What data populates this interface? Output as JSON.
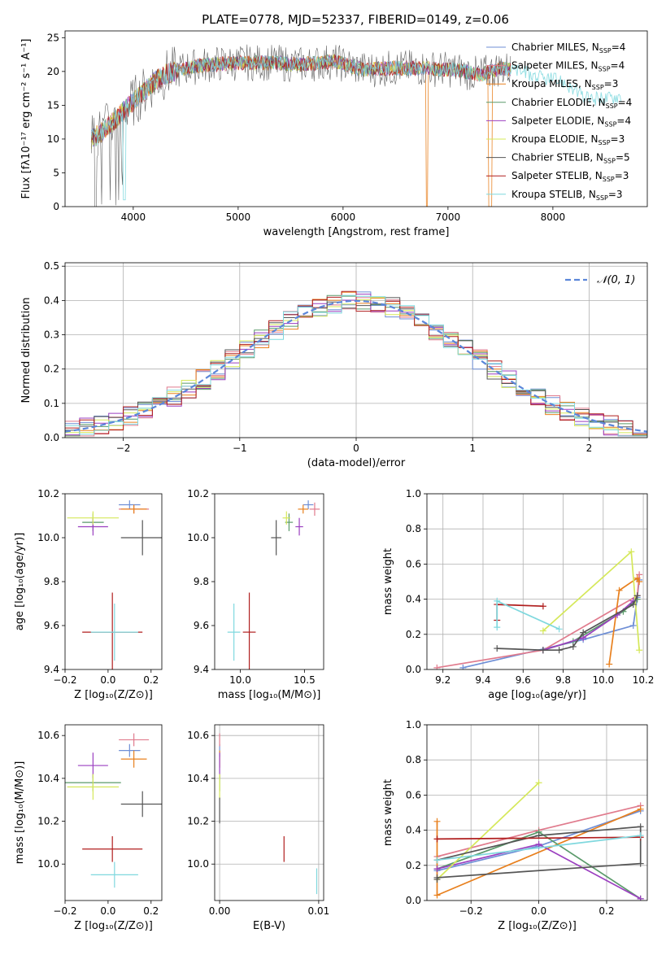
{
  "figure": {
    "title": "PLATE=0778, MJD=52337, FIBERID=0149, z=0.06"
  },
  "series_styles": [
    {
      "name": "Chabrier MILES, N",
      "sub": "SSP",
      "suffix": "=4",
      "color": "#6f8fd6"
    },
    {
      "name": "Salpeter MILES, N",
      "sub": "SSP",
      "suffix": "=4",
      "color": "#e07b8d"
    },
    {
      "name": "Kroupa MILES, N",
      "sub": "SSP",
      "suffix": "=3",
      "color": "#e8801e"
    },
    {
      "name": "Chabrier ELODIE, N",
      "sub": "SSP",
      "suffix": "=4",
      "color": "#5a9a6a"
    },
    {
      "name": "Salpeter ELODIE, N",
      "sub": "SSP",
      "suffix": "=4",
      "color": "#9b3fc0"
    },
    {
      "name": "Kroupa ELODIE, N",
      "sub": "SSP",
      "suffix": "=3",
      "color": "#d5e85a"
    },
    {
      "name": "Chabrier STELIB, N",
      "sub": "SSP",
      "suffix": "=5",
      "color": "#555555"
    },
    {
      "name": "Salpeter STELIB, N",
      "sub": "SSP",
      "suffix": "=3",
      "color": "#b01e1e"
    },
    {
      "name": "Kroupa STELIB, N",
      "sub": "SSP",
      "suffix": "=3",
      "color": "#7fd8de"
    }
  ],
  "chart_data": [
    {
      "id": "spectrum",
      "type": "line",
      "xlabel": "wavelength [Angstrom, rest frame]",
      "ylabel": "Flux [fλ10⁻¹⁷ erg cm⁻² s⁻¹ A⁻¹]",
      "xlim": [
        3350,
        8900
      ],
      "ylim": [
        0,
        26
      ],
      "xticks": [
        4000,
        5000,
        6000,
        7000,
        8000
      ],
      "yticks": [
        0,
        5,
        10,
        15,
        20,
        25
      ],
      "envelope": {
        "x": [
          3600,
          3700,
          3800,
          3900,
          4000,
          4100,
          4200,
          4300,
          4400,
          4500,
          4700,
          5000,
          5300,
          5600,
          5900,
          6200,
          6500,
          6800,
          7100,
          7300,
          7500,
          7700,
          7900,
          8100,
          8300,
          8500,
          8650
        ],
        "y": [
          10,
          11,
          12.5,
          14,
          15.5,
          17,
          18.5,
          19.5,
          20,
          20.5,
          21,
          21.3,
          21.3,
          21,
          21.5,
          20.3,
          20.5,
          20.5,
          20.2,
          19.5,
          20.5,
          20,
          19,
          18.5,
          16,
          16,
          16.5
        ]
      }
    },
    {
      "id": "residuals",
      "type": "histogram",
      "xlabel": "(data-model)/error",
      "ylabel": "Normed distribution",
      "xlim": [
        -2.5,
        2.5
      ],
      "ylim": [
        0,
        0.51
      ],
      "xticks": [
        -2,
        -1,
        0,
        1,
        2
      ],
      "yticks": [
        0.0,
        0.1,
        0.2,
        0.3,
        0.4,
        0.5
      ],
      "legend": "𝒩(0, 1)",
      "legend_position": "top-right",
      "grid": true
    },
    {
      "id": "age_vs_Z",
      "type": "scatter",
      "xlabel": "Z [log₁₀(Z/Z⊙)]",
      "ylabel": "age  [log₁₀(age/yr)]",
      "xlim": [
        -0.2,
        0.25
      ],
      "ylim": [
        9.4,
        10.2
      ],
      "xticks": [
        -0.2,
        0.0,
        0.2
      ],
      "yticks": [
        9.4,
        9.6,
        9.8,
        10.0,
        10.2
      ],
      "points": [
        {
          "x": 0.1,
          "y": 10.15,
          "xerr": 0.05,
          "yerr": 0.02,
          "color": "#6f8fd6"
        },
        {
          "x": 0.12,
          "y": 10.13,
          "xerr": 0.07,
          "yerr": 0.02,
          "color": "#e07b8d"
        },
        {
          "x": 0.12,
          "y": 10.13,
          "xerr": 0.06,
          "yerr": 0.02,
          "color": "#e8801e"
        },
        {
          "x": -0.07,
          "y": 10.07,
          "xerr": 0.05,
          "yerr": 0.04,
          "color": "#5a9a6a"
        },
        {
          "x": -0.07,
          "y": 10.05,
          "xerr": 0.07,
          "yerr": 0.04,
          "color": "#9b3fc0"
        },
        {
          "x": -0.07,
          "y": 10.09,
          "xerr": 0.12,
          "yerr": 0.03,
          "color": "#d5e85a"
        },
        {
          "x": 0.16,
          "y": 10.0,
          "xerr": 0.1,
          "yerr": 0.08,
          "color": "#555555"
        },
        {
          "x": 0.02,
          "y": 9.57,
          "xerr": 0.14,
          "yerr": 0.18,
          "color": "#b01e1e"
        },
        {
          "x": 0.03,
          "y": 9.57,
          "xerr": 0.11,
          "yerr": 0.13,
          "color": "#7fd8de"
        }
      ]
    },
    {
      "id": "age_vs_mass",
      "type": "scatter",
      "xlabel": "mass [log₁₀(M/M⊙)]",
      "ylabel": "",
      "xlim": [
        9.8,
        10.65
      ],
      "ylim": [
        9.4,
        10.2
      ],
      "xticks": [
        10.0,
        10.5
      ],
      "yticks": [
        9.4,
        9.6,
        9.8,
        10.0,
        10.2
      ],
      "points": [
        {
          "x": 10.53,
          "y": 10.15,
          "xerr": 0.04,
          "yerr": 0.02,
          "color": "#6f8fd6"
        },
        {
          "x": 10.58,
          "y": 10.13,
          "xerr": 0.04,
          "yerr": 0.03,
          "color": "#e07b8d"
        },
        {
          "x": 10.49,
          "y": 10.13,
          "xerr": 0.04,
          "yerr": 0.02,
          "color": "#e8801e"
        },
        {
          "x": 10.38,
          "y": 10.07,
          "xerr": 0.03,
          "yerr": 0.04,
          "color": "#5a9a6a"
        },
        {
          "x": 10.46,
          "y": 10.05,
          "xerr": 0.03,
          "yerr": 0.04,
          "color": "#9b3fc0"
        },
        {
          "x": 10.36,
          "y": 10.09,
          "xerr": 0.03,
          "yerr": 0.03,
          "color": "#d5e85a"
        },
        {
          "x": 10.28,
          "y": 10.0,
          "xerr": 0.04,
          "yerr": 0.08,
          "color": "#555555"
        },
        {
          "x": 10.07,
          "y": 9.57,
          "xerr": 0.05,
          "yerr": 0.18,
          "color": "#b01e1e"
        },
        {
          "x": 9.95,
          "y": 9.57,
          "xerr": 0.05,
          "yerr": 0.13,
          "color": "#7fd8de"
        }
      ]
    },
    {
      "id": "weight_vs_age",
      "type": "line",
      "xlabel": "age  [log₁₀(age/yr)]",
      "ylabel": "mass weight",
      "xlim": [
        9.12,
        10.22
      ],
      "ylim": [
        0,
        1.0
      ],
      "xticks": [
        9.2,
        9.4,
        9.6,
        9.8,
        10.0,
        10.2
      ],
      "yticks": [
        0.0,
        0.2,
        0.4,
        0.6,
        0.8,
        1.0
      ],
      "grid": true,
      "series": [
        {
          "x": [
            9.3,
            9.9,
            10.15,
            10.17,
            10.18
          ],
          "y": [
            0.01,
            0.17,
            0.25,
            0.41,
            0.51
          ],
          "color": "#6f8fd6"
        },
        {
          "x": [
            9.17,
            9.7,
            10.17,
            10.18
          ],
          "y": [
            0.01,
            0.11,
            0.42,
            0.54
          ],
          "color": "#e07b8d"
        },
        {
          "x": [
            10.03,
            10.08,
            10.17,
            10.18
          ],
          "y": [
            0.03,
            0.45,
            0.52,
            0.5
          ],
          "color": "#e8801e"
        },
        {
          "x": [
            9.7,
            9.85,
            10.1,
            10.17
          ],
          "y": [
            0.11,
            0.16,
            0.33,
            0.4
          ],
          "color": "#5a9a6a"
        },
        {
          "x": [
            9.7,
            9.9,
            10.07,
            10.15
          ],
          "y": [
            0.11,
            0.18,
            0.31,
            0.39
          ],
          "color": "#9b3fc0"
        },
        {
          "x": [
            9.7,
            10.14,
            10.18
          ],
          "y": [
            0.22,
            0.67,
            0.11
          ],
          "color": "#d5e85a"
        },
        {
          "x": [
            9.47,
            9.7,
            9.78,
            9.85,
            9.9,
            10.15,
            10.17
          ],
          "y": [
            0.12,
            0.11,
            0.11,
            0.13,
            0.21,
            0.37,
            0.42
          ],
          "color": "#555555"
        },
        {
          "x": [
            9.47,
            9.47,
            9.7
          ],
          "y": [
            0.28,
            0.37,
            0.36
          ],
          "color": "#b01e1e"
        },
        {
          "x": [
            9.47,
            9.47,
            9.78
          ],
          "y": [
            0.24,
            0.39,
            0.23
          ],
          "color": "#7fd8de"
        }
      ]
    },
    {
      "id": "mass_vs_Z",
      "type": "scatter",
      "xlabel": "Z [log₁₀(Z/Z⊙)]",
      "ylabel": "mass [log₁₀(M/M⊙)]",
      "xlim": [
        -0.2,
        0.25
      ],
      "ylim": [
        9.83,
        10.65
      ],
      "xticks": [
        -0.2,
        0.0,
        0.2
      ],
      "yticks": [
        10.0,
        10.2,
        10.4,
        10.6
      ],
      "points": [
        {
          "x": 0.1,
          "y": 10.53,
          "xerr": 0.05,
          "yerr": 0.03,
          "color": "#6f8fd6"
        },
        {
          "x": 0.12,
          "y": 10.58,
          "xerr": 0.07,
          "yerr": 0.03,
          "color": "#e07b8d"
        },
        {
          "x": 0.12,
          "y": 10.49,
          "xerr": 0.06,
          "yerr": 0.04,
          "color": "#e8801e"
        },
        {
          "x": -0.07,
          "y": 10.38,
          "xerr": 0.13,
          "yerr": 0.04,
          "color": "#5a9a6a"
        },
        {
          "x": -0.07,
          "y": 10.46,
          "xerr": 0.07,
          "yerr": 0.06,
          "color": "#9b3fc0"
        },
        {
          "x": -0.07,
          "y": 10.36,
          "xerr": 0.12,
          "yerr": 0.06,
          "color": "#d5e85a"
        },
        {
          "x": 0.16,
          "y": 10.28,
          "xerr": 0.1,
          "yerr": 0.06,
          "color": "#555555"
        },
        {
          "x": 0.02,
          "y": 10.07,
          "xerr": 0.14,
          "yerr": 0.06,
          "color": "#b01e1e"
        },
        {
          "x": 0.03,
          "y": 9.95,
          "xerr": 0.11,
          "yerr": 0.06,
          "color": "#7fd8de"
        }
      ]
    },
    {
      "id": "mass_vs_ebv",
      "type": "scatter",
      "xlabel": "E(B-V)",
      "ylabel": "",
      "xlim": [
        -0.0005,
        0.0105
      ],
      "ylim": [
        9.83,
        10.65
      ],
      "xticks": [
        0.0,
        0.01
      ],
      "xticklabels": [
        "0.00",
        "0.01"
      ],
      "yticks": [
        10.0,
        10.2,
        10.4,
        10.6
      ],
      "grid": true,
      "points": [
        {
          "x": 0.0,
          "y": 10.53,
          "xerr": 0,
          "yerr": 0.03,
          "color": "#6f8fd6"
        },
        {
          "x": 0.0,
          "y": 10.58,
          "xerr": 0,
          "yerr": 0.03,
          "color": "#e07b8d"
        },
        {
          "x": 0.0,
          "y": 10.49,
          "xerr": 0,
          "yerr": 0.04,
          "color": "#e8801e"
        },
        {
          "x": 0.0,
          "y": 10.38,
          "xerr": 0,
          "yerr": 0.04,
          "color": "#5a9a6a"
        },
        {
          "x": 0.0,
          "y": 10.46,
          "xerr": 0,
          "yerr": 0.06,
          "color": "#9b3fc0"
        },
        {
          "x": 0.0,
          "y": 10.36,
          "xerr": 0,
          "yerr": 0.06,
          "color": "#d5e85a"
        },
        {
          "x": 0.0,
          "y": 10.25,
          "xerr": 0,
          "yerr": 0.06,
          "color": "#555555"
        },
        {
          "x": 0.0065,
          "y": 10.07,
          "xerr": 0,
          "yerr": 0.06,
          "color": "#b01e1e"
        },
        {
          "x": 0.0098,
          "y": 9.92,
          "xerr": 0,
          "yerr": 0.06,
          "color": "#7fd8de"
        }
      ]
    },
    {
      "id": "weight_vs_Z",
      "type": "line",
      "xlabel": "Z [log₁₀(Z/Z⊙)]",
      "ylabel": "mass weight",
      "xlim": [
        -0.33,
        0.32
      ],
      "ylim": [
        0,
        1.0
      ],
      "xticks": [
        -0.2,
        0.0,
        0.2
      ],
      "yticks": [
        0.0,
        0.2,
        0.4,
        0.6,
        0.8,
        1.0
      ],
      "grid": true,
      "series": [
        {
          "x": [
            -0.3,
            0.0,
            0.3
          ],
          "y": [
            0.17,
            0.31,
            0.51
          ],
          "color": "#6f8fd6"
        },
        {
          "x": [
            -0.3,
            0.0,
            0.3
          ],
          "y": [
            0.25,
            0.4,
            0.54
          ],
          "color": "#e07b8d"
        },
        {
          "x": [
            -0.3,
            -0.3,
            0.3
          ],
          "y": [
            0.45,
            0.03,
            0.52
          ],
          "color": "#e8801e"
        },
        {
          "x": [
            -0.3,
            0.0,
            0.3
          ],
          "y": [
            0.18,
            0.39,
            0.01
          ],
          "color": "#5a9a6a"
        },
        {
          "x": [
            -0.3,
            0.0,
            0.3
          ],
          "y": [
            0.18,
            0.32,
            0.01
          ],
          "color": "#9b3fc0"
        },
        {
          "x": [
            -0.3,
            0.0
          ],
          "y": [
            0.12,
            0.67
          ],
          "color": "#d5e85a"
        },
        {
          "x": [
            -0.3,
            -0.3,
            0.3,
            0.3,
            0.0,
            -0.3
          ],
          "y": [
            0.12,
            0.13,
            0.21,
            0.42,
            0.37,
            0.23
          ],
          "color": "#555555"
        },
        {
          "x": [
            -0.3,
            0.3
          ],
          "y": [
            0.35,
            0.36
          ],
          "color": "#b01e1e"
        },
        {
          "x": [
            -0.3,
            0.3
          ],
          "y": [
            0.23,
            0.37
          ],
          "color": "#7fd8de"
        }
      ]
    }
  ]
}
